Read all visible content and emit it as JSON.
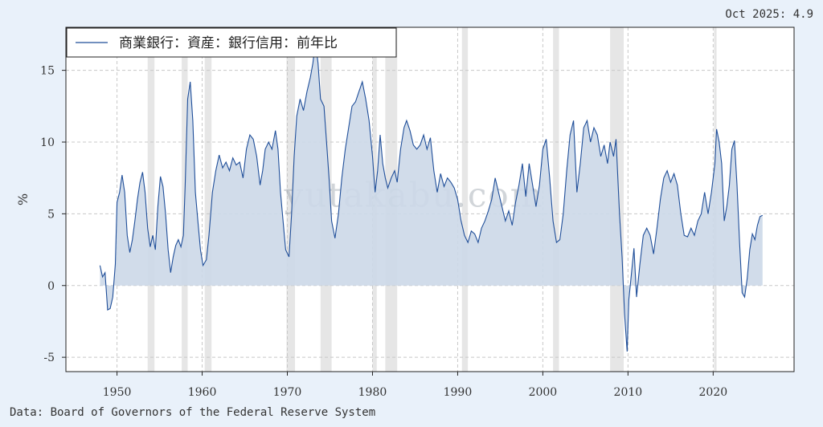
{
  "latest_label": "Oct 2025: 4.9",
  "source": "Data: Board of Governors of the Federal Reserve System",
  "watermark": "yutakabu.com",
  "colors": {
    "background": "#e9f1fa",
    "plot_bg": "#ffffff",
    "line": "#1f4e99",
    "fill": "#ccd8e8",
    "recession": "#e6e6e6",
    "grid": "#c8c8c8"
  },
  "chart_data": {
    "type": "area",
    "title": "",
    "xlabel": "",
    "ylabel": "%",
    "xlim": [
      1944,
      2029.5
    ],
    "ylim": [
      -6,
      18
    ],
    "grid": true,
    "legend_position": "top-left",
    "x_ticks": [
      1950,
      1960,
      1970,
      1980,
      1990,
      2000,
      2010,
      2020
    ],
    "y_ticks": [
      -5,
      0,
      5,
      10,
      15
    ],
    "recessions": [
      [
        1953.6,
        1954.4
      ],
      [
        1957.6,
        1958.3
      ],
      [
        1960.3,
        1961.1
      ],
      [
        1969.9,
        1970.9
      ],
      [
        1973.9,
        1975.2
      ],
      [
        1980.0,
        1980.5
      ],
      [
        1981.5,
        1982.9
      ],
      [
        1990.5,
        1991.2
      ],
      [
        2001.2,
        2001.9
      ],
      [
        2007.9,
        2009.5
      ],
      [
        2020.1,
        2020.4
      ]
    ],
    "series": [
      {
        "name": "商業銀行：資産：銀行信用：前年比",
        "points": [
          [
            1948.0,
            1.4
          ],
          [
            1948.3,
            0.6
          ],
          [
            1948.6,
            0.9
          ],
          [
            1948.9,
            -1.7
          ],
          [
            1949.2,
            -1.6
          ],
          [
            1949.5,
            -0.8
          ],
          [
            1949.8,
            1.5
          ],
          [
            1950.0,
            5.8
          ],
          [
            1950.3,
            6.5
          ],
          [
            1950.6,
            7.7
          ],
          [
            1950.9,
            6.5
          ],
          [
            1951.2,
            3.5
          ],
          [
            1951.5,
            2.3
          ],
          [
            1951.8,
            3.2
          ],
          [
            1952.1,
            4.5
          ],
          [
            1952.4,
            6.0
          ],
          [
            1952.7,
            7.2
          ],
          [
            1953.0,
            7.9
          ],
          [
            1953.3,
            6.5
          ],
          [
            1953.6,
            4.0
          ],
          [
            1953.9,
            2.7
          ],
          [
            1954.2,
            3.5
          ],
          [
            1954.5,
            2.5
          ],
          [
            1954.8,
            5.5
          ],
          [
            1955.1,
            7.6
          ],
          [
            1955.4,
            6.9
          ],
          [
            1955.7,
            5.0
          ],
          [
            1956.0,
            2.5
          ],
          [
            1956.3,
            0.9
          ],
          [
            1956.6,
            2.0
          ],
          [
            1956.9,
            2.8
          ],
          [
            1957.2,
            3.2
          ],
          [
            1957.5,
            2.7
          ],
          [
            1957.8,
            3.5
          ],
          [
            1958.0,
            7.0
          ],
          [
            1958.3,
            13.0
          ],
          [
            1958.6,
            14.2
          ],
          [
            1958.9,
            11.5
          ],
          [
            1959.2,
            6.5
          ],
          [
            1959.5,
            4.5
          ],
          [
            1959.8,
            2.5
          ],
          [
            1960.1,
            1.4
          ],
          [
            1960.5,
            1.8
          ],
          [
            1960.8,
            3.5
          ],
          [
            1961.2,
            6.5
          ],
          [
            1961.6,
            8.0
          ],
          [
            1962.0,
            9.1
          ],
          [
            1962.4,
            8.2
          ],
          [
            1962.8,
            8.6
          ],
          [
            1963.2,
            8.0
          ],
          [
            1963.6,
            8.9
          ],
          [
            1964.0,
            8.4
          ],
          [
            1964.4,
            8.6
          ],
          [
            1964.8,
            7.5
          ],
          [
            1965.2,
            9.5
          ],
          [
            1965.6,
            10.5
          ],
          [
            1966.0,
            10.2
          ],
          [
            1966.4,
            9.0
          ],
          [
            1966.8,
            7.0
          ],
          [
            1967.1,
            8.0
          ],
          [
            1967.4,
            9.5
          ],
          [
            1967.8,
            10.0
          ],
          [
            1968.2,
            9.5
          ],
          [
            1968.6,
            10.8
          ],
          [
            1968.9,
            9.5
          ],
          [
            1969.2,
            6.5
          ],
          [
            1969.5,
            4.5
          ],
          [
            1969.8,
            2.5
          ],
          [
            1970.2,
            2.0
          ],
          [
            1970.5,
            5.0
          ],
          [
            1970.8,
            9.0
          ],
          [
            1971.1,
            11.8
          ],
          [
            1971.5,
            13.0
          ],
          [
            1971.9,
            12.2
          ],
          [
            1972.3,
            13.5
          ],
          [
            1972.7,
            14.5
          ],
          [
            1973.0,
            15.5
          ],
          [
            1973.3,
            17.0
          ],
          [
            1973.6,
            15.5
          ],
          [
            1973.9,
            13.0
          ],
          [
            1974.3,
            12.5
          ],
          [
            1974.6,
            10.0
          ],
          [
            1974.9,
            7.5
          ],
          [
            1975.2,
            4.5
          ],
          [
            1975.6,
            3.3
          ],
          [
            1976.0,
            5.0
          ],
          [
            1976.4,
            7.5
          ],
          [
            1976.8,
            9.5
          ],
          [
            1977.2,
            11.0
          ],
          [
            1977.6,
            12.5
          ],
          [
            1978.0,
            12.8
          ],
          [
            1978.4,
            13.5
          ],
          [
            1978.8,
            14.2
          ],
          [
            1979.2,
            13.0
          ],
          [
            1979.6,
            11.5
          ],
          [
            1980.0,
            9.0
          ],
          [
            1980.3,
            6.5
          ],
          [
            1980.6,
            8.0
          ],
          [
            1980.9,
            10.5
          ],
          [
            1981.2,
            8.5
          ],
          [
            1981.5,
            7.5
          ],
          [
            1981.8,
            6.8
          ],
          [
            1982.2,
            7.5
          ],
          [
            1982.6,
            8.0
          ],
          [
            1982.9,
            7.2
          ],
          [
            1983.3,
            9.5
          ],
          [
            1983.7,
            11.0
          ],
          [
            1984.0,
            11.5
          ],
          [
            1984.4,
            10.8
          ],
          [
            1984.8,
            9.8
          ],
          [
            1985.2,
            9.5
          ],
          [
            1985.6,
            9.8
          ],
          [
            1986.0,
            10.5
          ],
          [
            1986.4,
            9.5
          ],
          [
            1986.8,
            10.3
          ],
          [
            1987.2,
            8.0
          ],
          [
            1987.6,
            6.5
          ],
          [
            1988.0,
            7.8
          ],
          [
            1988.4,
            6.9
          ],
          [
            1988.8,
            7.5
          ],
          [
            1989.2,
            7.2
          ],
          [
            1989.6,
            6.8
          ],
          [
            1990.0,
            6.0
          ],
          [
            1990.4,
            4.5
          ],
          [
            1990.8,
            3.5
          ],
          [
            1991.2,
            3.0
          ],
          [
            1991.6,
            3.8
          ],
          [
            1992.0,
            3.6
          ],
          [
            1992.4,
            3.0
          ],
          [
            1992.8,
            4.0
          ],
          [
            1993.2,
            4.5
          ],
          [
            1993.6,
            5.2
          ],
          [
            1994.0,
            6.0
          ],
          [
            1994.4,
            7.5
          ],
          [
            1994.8,
            6.5
          ],
          [
            1995.2,
            5.5
          ],
          [
            1995.6,
            4.5
          ],
          [
            1996.0,
            5.2
          ],
          [
            1996.4,
            4.2
          ],
          [
            1996.8,
            5.8
          ],
          [
            1997.2,
            7.0
          ],
          [
            1997.6,
            8.5
          ],
          [
            1998.0,
            6.2
          ],
          [
            1998.4,
            8.5
          ],
          [
            1998.8,
            7.0
          ],
          [
            1999.2,
            5.5
          ],
          [
            1999.6,
            7.0
          ],
          [
            2000.0,
            9.5
          ],
          [
            2000.4,
            10.2
          ],
          [
            2000.8,
            7.5
          ],
          [
            2001.2,
            4.5
          ],
          [
            2001.6,
            3.0
          ],
          [
            2002.0,
            3.2
          ],
          [
            2002.4,
            5.0
          ],
          [
            2002.8,
            8.0
          ],
          [
            2003.2,
            10.5
          ],
          [
            2003.6,
            11.5
          ],
          [
            2004.0,
            6.5
          ],
          [
            2004.4,
            8.5
          ],
          [
            2004.8,
            11.0
          ],
          [
            2005.2,
            11.5
          ],
          [
            2005.6,
            10.0
          ],
          [
            2006.0,
            11.0
          ],
          [
            2006.4,
            10.5
          ],
          [
            2006.8,
            9.0
          ],
          [
            2007.2,
            9.8
          ],
          [
            2007.6,
            8.5
          ],
          [
            2007.9,
            10.0
          ],
          [
            2008.3,
            9.0
          ],
          [
            2008.6,
            10.2
          ],
          [
            2009.0,
            5.0
          ],
          [
            2009.3,
            2.0
          ],
          [
            2009.6,
            -2.0
          ],
          [
            2009.9,
            -4.6
          ],
          [
            2010.1,
            -1.0
          ],
          [
            2010.4,
            0.8
          ],
          [
            2010.7,
            2.6
          ],
          [
            2011.0,
            -0.8
          ],
          [
            2011.4,
            1.5
          ],
          [
            2011.8,
            3.5
          ],
          [
            2012.2,
            4.0
          ],
          [
            2012.6,
            3.5
          ],
          [
            2013.0,
            2.2
          ],
          [
            2013.4,
            4.0
          ],
          [
            2013.8,
            6.0
          ],
          [
            2014.2,
            7.5
          ],
          [
            2014.6,
            8.0
          ],
          [
            2015.0,
            7.2
          ],
          [
            2015.4,
            7.8
          ],
          [
            2015.8,
            7.0
          ],
          [
            2016.2,
            5.0
          ],
          [
            2016.6,
            3.5
          ],
          [
            2017.0,
            3.4
          ],
          [
            2017.4,
            4.0
          ],
          [
            2017.8,
            3.5
          ],
          [
            2018.2,
            4.5
          ],
          [
            2018.6,
            5.0
          ],
          [
            2019.0,
            6.5
          ],
          [
            2019.4,
            5.0
          ],
          [
            2019.8,
            6.5
          ],
          [
            2020.2,
            8.5
          ],
          [
            2020.4,
            10.9
          ],
          [
            2020.7,
            10.0
          ],
          [
            2021.0,
            8.5
          ],
          [
            2021.3,
            4.5
          ],
          [
            2021.6,
            5.5
          ],
          [
            2021.9,
            7.0
          ],
          [
            2022.2,
            9.5
          ],
          [
            2022.5,
            10.1
          ],
          [
            2022.8,
            7.0
          ],
          [
            2023.1,
            3.0
          ],
          [
            2023.4,
            -0.5
          ],
          [
            2023.7,
            -0.8
          ],
          [
            2024.0,
            0.5
          ],
          [
            2024.3,
            2.5
          ],
          [
            2024.6,
            3.6
          ],
          [
            2024.9,
            3.2
          ],
          [
            2025.2,
            4.2
          ],
          [
            2025.5,
            4.8
          ],
          [
            2025.8,
            4.9
          ]
        ]
      }
    ]
  }
}
